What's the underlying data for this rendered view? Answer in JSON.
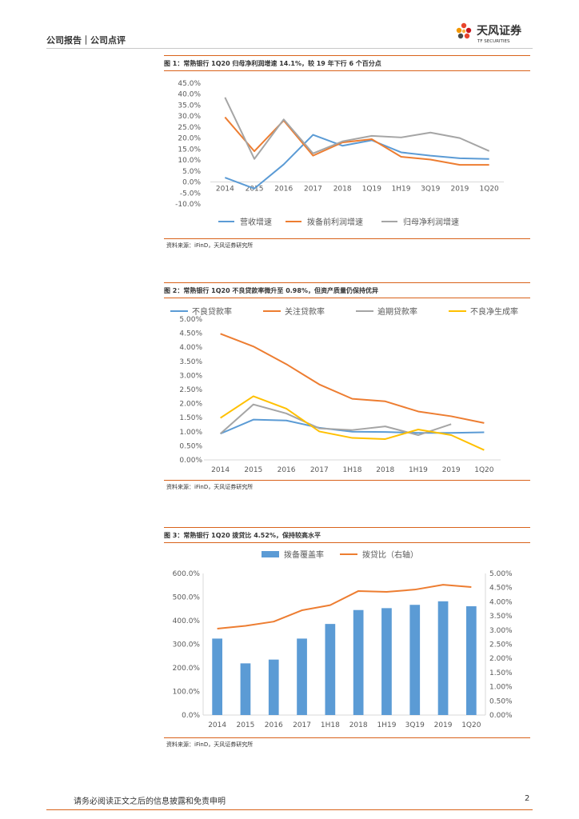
{
  "header": {
    "left_text": "公司报告｜公司点评",
    "brand_cn": "天风证券",
    "brand_en": "TF SECURITIES"
  },
  "colors": {
    "accent": "#d9621a",
    "blue": "#5b9bd5",
    "orange": "#ed7d31",
    "gray": "#a5a5a5",
    "yellow": "#ffc000"
  },
  "figures": [
    {
      "title": "图 1：常熟银行 1Q20 归母净利润增速 14.1%，较 19 年下行 6 个百分点",
      "source": "资料来源：iFinD，天风证券研究所"
    },
    {
      "title": "图 2：常熟银行 1Q20 不良贷款率微升至 0.98%，但资产质量仍保持优异",
      "source": "资料来源：iFinD，天风证券研究所"
    },
    {
      "title": "图 3：常熟银行 1Q20 拨贷比 4.52%，保持较高水平",
      "source": "资料来源：iFinD，天风证券研究所"
    }
  ],
  "chart_data": [
    {
      "type": "line",
      "categories": [
        "2014",
        "2015",
        "2016",
        "2017",
        "2018",
        "1Q19",
        "1H19",
        "3Q19",
        "2019",
        "1Q20"
      ],
      "ylim": [
        -10,
        45
      ],
      "yticks": [
        "45.0%",
        "40.0%",
        "35.0%",
        "30.0%",
        "25.0%",
        "20.0%",
        "15.0%",
        "10.0%",
        "5.0%",
        "0.0%",
        "-5.0%",
        "-10.0%"
      ],
      "grid": false,
      "legend": "bottom",
      "series": [
        {
          "name": "营收增速",
          "color": "#5b9bd5",
          "values": [
            2.0,
            -3.0,
            8.0,
            21.5,
            16.5,
            19.0,
            13.5,
            12.0,
            10.8,
            10.5
          ]
        },
        {
          "name": "拨备前利润增速",
          "color": "#ed7d31",
          "values": [
            29.5,
            14.0,
            28.0,
            12.0,
            18.0,
            19.5,
            11.5,
            10.2,
            7.8,
            7.8
          ]
        },
        {
          "name": "归母净利润增速",
          "color": "#a5a5a5",
          "values": [
            38.5,
            10.5,
            28.5,
            13.0,
            18.5,
            21.0,
            20.3,
            22.5,
            20.0,
            14.1
          ]
        }
      ]
    },
    {
      "type": "line",
      "categories": [
        "2014",
        "2015",
        "2016",
        "2017",
        "1H18",
        "2018",
        "1H19",
        "2019",
        "1Q20"
      ],
      "ylim": [
        0,
        5
      ],
      "yticks": [
        "5.00%",
        "4.50%",
        "4.00%",
        "3.50%",
        "3.00%",
        "2.50%",
        "2.00%",
        "1.50%",
        "1.00%",
        "0.50%",
        "0.00%"
      ],
      "grid": false,
      "legend": "top",
      "series": [
        {
          "name": "不良贷款率",
          "color": "#5b9bd5",
          "values": [
            0.93,
            1.43,
            1.4,
            1.14,
            1.0,
            0.99,
            0.96,
            0.96,
            0.98
          ]
        },
        {
          "name": "关注贷款率",
          "color": "#ed7d31",
          "values": [
            4.48,
            4.03,
            3.4,
            2.68,
            2.17,
            2.08,
            1.72,
            1.55,
            1.31
          ]
        },
        {
          "name": "逾期贷款率",
          "color": "#a5a5a5",
          "values": [
            0.93,
            1.97,
            1.65,
            1.12,
            1.06,
            1.19,
            0.88,
            1.27,
            null
          ]
        },
        {
          "name": "不良净生成率",
          "color": "#ffc000",
          "values": [
            1.49,
            2.26,
            1.82,
            1.01,
            0.78,
            0.74,
            1.08,
            0.88,
            0.35
          ]
        }
      ]
    },
    {
      "type": "bar",
      "categories": [
        "2014",
        "2015",
        "2016",
        "2017",
        "1H18",
        "2018",
        "1H19",
        "3Q19",
        "2019",
        "1Q20"
      ],
      "ylim": [
        0,
        600
      ],
      "yticks": [
        "600.0%",
        "500.0%",
        "400.0%",
        "300.0%",
        "200.0%",
        "100.0%",
        "0.0%"
      ],
      "y2lim": [
        0,
        5
      ],
      "y2ticks": [
        "5.00%",
        "4.50%",
        "4.00%",
        "3.50%",
        "3.00%",
        "2.50%",
        "2.00%",
        "1.50%",
        "1.00%",
        "0.50%",
        "0.00%"
      ],
      "grid": false,
      "legend": "top",
      "series": [
        {
          "name": "拨备覆盖率",
          "kind": "bar",
          "axis": "left",
          "color": "#5b9bd5",
          "values": [
            324,
            219,
            235,
            324,
            386,
            445,
            453,
            467,
            482,
            461
          ]
        },
        {
          "name": "拨贷比（右轴）",
          "kind": "line",
          "axis": "right",
          "color": "#ed7d31",
          "values": [
            3.05,
            3.15,
            3.3,
            3.7,
            3.88,
            4.38,
            4.35,
            4.43,
            4.6,
            4.52
          ]
        }
      ]
    }
  ],
  "footer": {
    "disclaimer": "请务必阅读正文之后的信息披露和免责申明",
    "page": "2"
  }
}
